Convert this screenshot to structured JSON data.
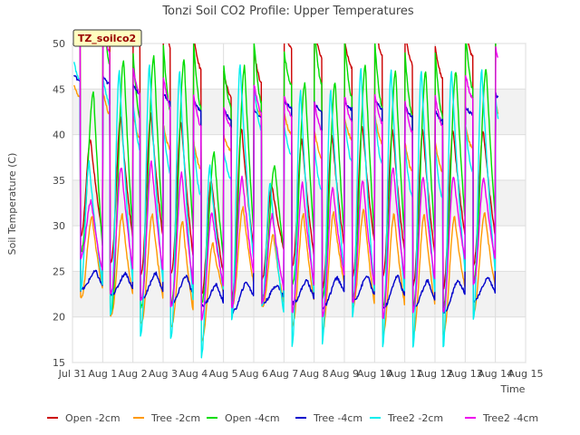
{
  "chart_data": {
    "type": "line",
    "title": "Tonzi Soil CO2 Profile: Upper Temperatures",
    "xlabel": "Time",
    "ylabel": "Soil Temperature (C)",
    "annotation": "TZ_soilco2",
    "xlim": [
      0,
      15
    ],
    "ylim": [
      15,
      50
    ],
    "yticks": [
      15,
      20,
      25,
      30,
      35,
      40,
      45,
      50
    ],
    "xticks": [
      {
        "label": "Jul 31",
        "day": 0
      },
      {
        "label": "Aug 1",
        "day": 1
      },
      {
        "label": "Aug 2",
        "day": 2
      },
      {
        "label": "Aug 3",
        "day": 3
      },
      {
        "label": "Aug 4",
        "day": 4
      },
      {
        "label": "Aug 5",
        "day": 5
      },
      {
        "label": "Aug 6",
        "day": 6
      },
      {
        "label": "Aug 7",
        "day": 7
      },
      {
        "label": "Aug 8",
        "day": 8
      },
      {
        "label": "Aug 9",
        "day": 9
      },
      {
        "label": "Aug 10",
        "day": 10
      },
      {
        "label": "Aug 11",
        "day": 11
      },
      {
        "label": "Aug 12",
        "day": 12
      },
      {
        "label": "Aug 13",
        "day": 13
      },
      {
        "label": "Aug 14",
        "day": 14
      },
      {
        "label": "Aug 15",
        "day": 15
      }
    ],
    "grid": true,
    "legend_position": "bottom",
    "series": [
      {
        "name": "Open -2cm",
        "color": "#cc0000",
        "peak_offset": 0.6,
        "max": [
          39.5,
          42.0,
          42.3,
          41.5,
          35.0,
          40.8,
          34.5,
          39.5,
          39.8,
          41.0,
          40.6,
          40.5,
          40.5,
          40.5
        ],
        "min": [
          28.8,
          26.0,
          24.8,
          24.8,
          22.4,
          21.8,
          24.0,
          25.5,
          23.0,
          24.3,
          24.5,
          23.2,
          23.0,
          25.6
        ]
      },
      {
        "name": "Tree -2cm",
        "color": "#ff9900",
        "peak_offset": 0.65,
        "max": [
          31.0,
          31.2,
          31.2,
          30.5,
          28.0,
          32.0,
          29.0,
          31.3,
          31.5,
          31.8,
          31.3,
          31.2,
          31.0,
          31.5
        ],
        "min": [
          22.0,
          20.2,
          19.3,
          19.0,
          17.3,
          21.0,
          21.0,
          19.0,
          18.5,
          21.0,
          18.0,
          18.0,
          18.0,
          20.5
        ]
      },
      {
        "name": "Open -4cm",
        "color": "#00dd00",
        "peak_offset": 0.7,
        "max": [
          44.6,
          48.3,
          48.7,
          48.2,
          38.0,
          47.5,
          36.7,
          45.8,
          45.7,
          47.5,
          47.0,
          47.0,
          47.0,
          47.3
        ],
        "min": [
          27.0,
          20.5,
          21.0,
          21.5,
          21.5,
          21.5,
          22.0,
          23.5,
          22.0,
          22.0,
          21.0,
          21.0,
          21.0,
          24.0
        ]
      },
      {
        "name": "Tree -4cm",
        "color": "#0000cc",
        "peak_offset": 0.78,
        "max": [
          25.0,
          24.8,
          24.8,
          24.5,
          23.5,
          23.8,
          23.5,
          24.0,
          24.3,
          24.5,
          24.5,
          24.0,
          24.0,
          24.3
        ],
        "min": [
          23.0,
          22.5,
          22.0,
          21.5,
          21.2,
          20.5,
          21.5,
          21.5,
          21.0,
          21.8,
          21.0,
          21.0,
          20.5,
          21.8
        ]
      },
      {
        "name": "Tree2 -2cm",
        "color": "#00eeee",
        "peak_offset": 0.55,
        "max": [
          37.0,
          47.0,
          47.5,
          47.0,
          36.5,
          47.5,
          34.7,
          44.7,
          44.7,
          47.2,
          47.0,
          47.0,
          47.0,
          47.0
        ],
        "min": [
          23.0,
          20.2,
          18.0,
          17.7,
          15.6,
          19.5,
          21.0,
          16.8,
          17.0,
          20.0,
          16.7,
          16.5,
          16.5,
          19.5
        ]
      },
      {
        "name": "Tree2 -4cm",
        "color": "#ee00ee",
        "peak_offset": 0.62,
        "max": [
          32.8,
          36.5,
          37.0,
          35.8,
          31.5,
          35.5,
          31.2,
          34.7,
          34.3,
          35.0,
          36.5,
          35.5,
          35.5,
          35.3
        ],
        "min": [
          26.5,
          22.5,
          21.8,
          21.2,
          19.8,
          21.0,
          21.5,
          20.5,
          20.0,
          21.5,
          19.8,
          20.5,
          20.5,
          23.5
        ]
      }
    ]
  }
}
